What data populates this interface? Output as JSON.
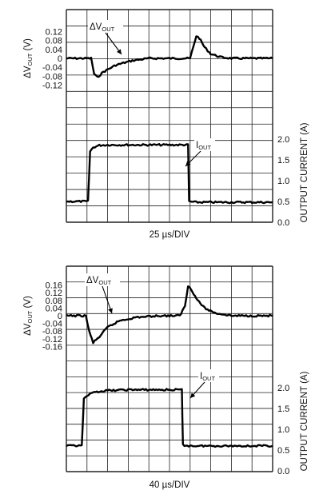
{
  "chart_data": [
    {
      "type": "line",
      "panel": "top",
      "xlabel": "25 µs/DIV",
      "xdivisions": 10,
      "grid": true,
      "left_axis": {
        "label": "ΔV_OUT (V)",
        "ticks": [
          0.12,
          0.08,
          0.04,
          0,
          -0.04,
          -0.08,
          -0.12
        ]
      },
      "right_axis": {
        "label": "OUTPUT CURRENT (A)",
        "ticks": [
          2.0,
          1.5,
          1.0,
          0.5,
          0.0
        ]
      },
      "annotations": [
        {
          "text": "ΔV",
          "sub": "OUT"
        },
        {
          "text": "I",
          "sub": "OUT"
        }
      ],
      "series": [
        {
          "axis": "left",
          "x_div": [
            0,
            1.2,
            1.35,
            1.5,
            1.8,
            2.4,
            3.2,
            4.0,
            5.0,
            6.0,
            6.15,
            6.3,
            6.45,
            6.7,
            7.0,
            7.5,
            8.0,
            9.0,
            10.0
          ],
          "values": [
            0.0,
            0.0,
            -0.07,
            -0.085,
            -0.06,
            -0.03,
            -0.01,
            0.0,
            0.0,
            0.0,
            0.05,
            0.1,
            0.09,
            0.05,
            0.02,
            0.005,
            0.0,
            0.0,
            0.0
          ]
        },
        {
          "axis": "right",
          "x_div": [
            0,
            1.05,
            1.15,
            1.3,
            1.6,
            2.0,
            3.0,
            4.0,
            5.0,
            5.9,
            5.95,
            6.3,
            10.0
          ],
          "values": [
            0.5,
            0.5,
            1.7,
            1.8,
            1.85,
            1.86,
            1.86,
            1.86,
            1.86,
            1.86,
            0.5,
            0.48,
            0.48
          ]
        }
      ]
    },
    {
      "type": "line",
      "panel": "bottom",
      "xlabel": "40 µs/DIV",
      "xdivisions": 10,
      "grid": true,
      "left_axis": {
        "label": "ΔV_OUT (V)",
        "ticks": [
          0.16,
          0.12,
          0.08,
          0.04,
          0,
          -0.04,
          -0.08,
          -0.12,
          -0.16
        ]
      },
      "right_axis": {
        "label": "OUTPUT CURRENT (A)",
        "ticks": [
          2.0,
          1.5,
          1.0,
          0.5,
          0.0
        ]
      },
      "annotations": [
        {
          "text": "ΔV",
          "sub": "OUT"
        },
        {
          "text": "I",
          "sub": "OUT"
        }
      ],
      "series": [
        {
          "axis": "left",
          "x_div": [
            0,
            0.95,
            1.1,
            1.3,
            1.6,
            2.0,
            2.6,
            3.4,
            4.5,
            5.5,
            5.75,
            5.9,
            6.05,
            6.3,
            6.7,
            7.2,
            8.0,
            9.0,
            10.0
          ],
          "values": [
            0.0,
            0.0,
            -0.08,
            -0.14,
            -0.11,
            -0.06,
            -0.025,
            -0.008,
            0.0,
            0.0,
            0.05,
            0.155,
            0.14,
            0.09,
            0.04,
            0.015,
            0.0,
            0.0,
            0.0
          ]
        },
        {
          "axis": "right",
          "x_div": [
            0,
            0.75,
            0.85,
            1.0,
            1.4,
            2.0,
            3.0,
            4.0,
            5.0,
            5.6,
            5.65,
            6.0,
            10.0
          ],
          "values": [
            0.6,
            0.6,
            1.72,
            1.8,
            1.9,
            1.93,
            1.95,
            1.95,
            1.95,
            1.95,
            0.62,
            0.6,
            0.6
          ]
        }
      ]
    }
  ]
}
